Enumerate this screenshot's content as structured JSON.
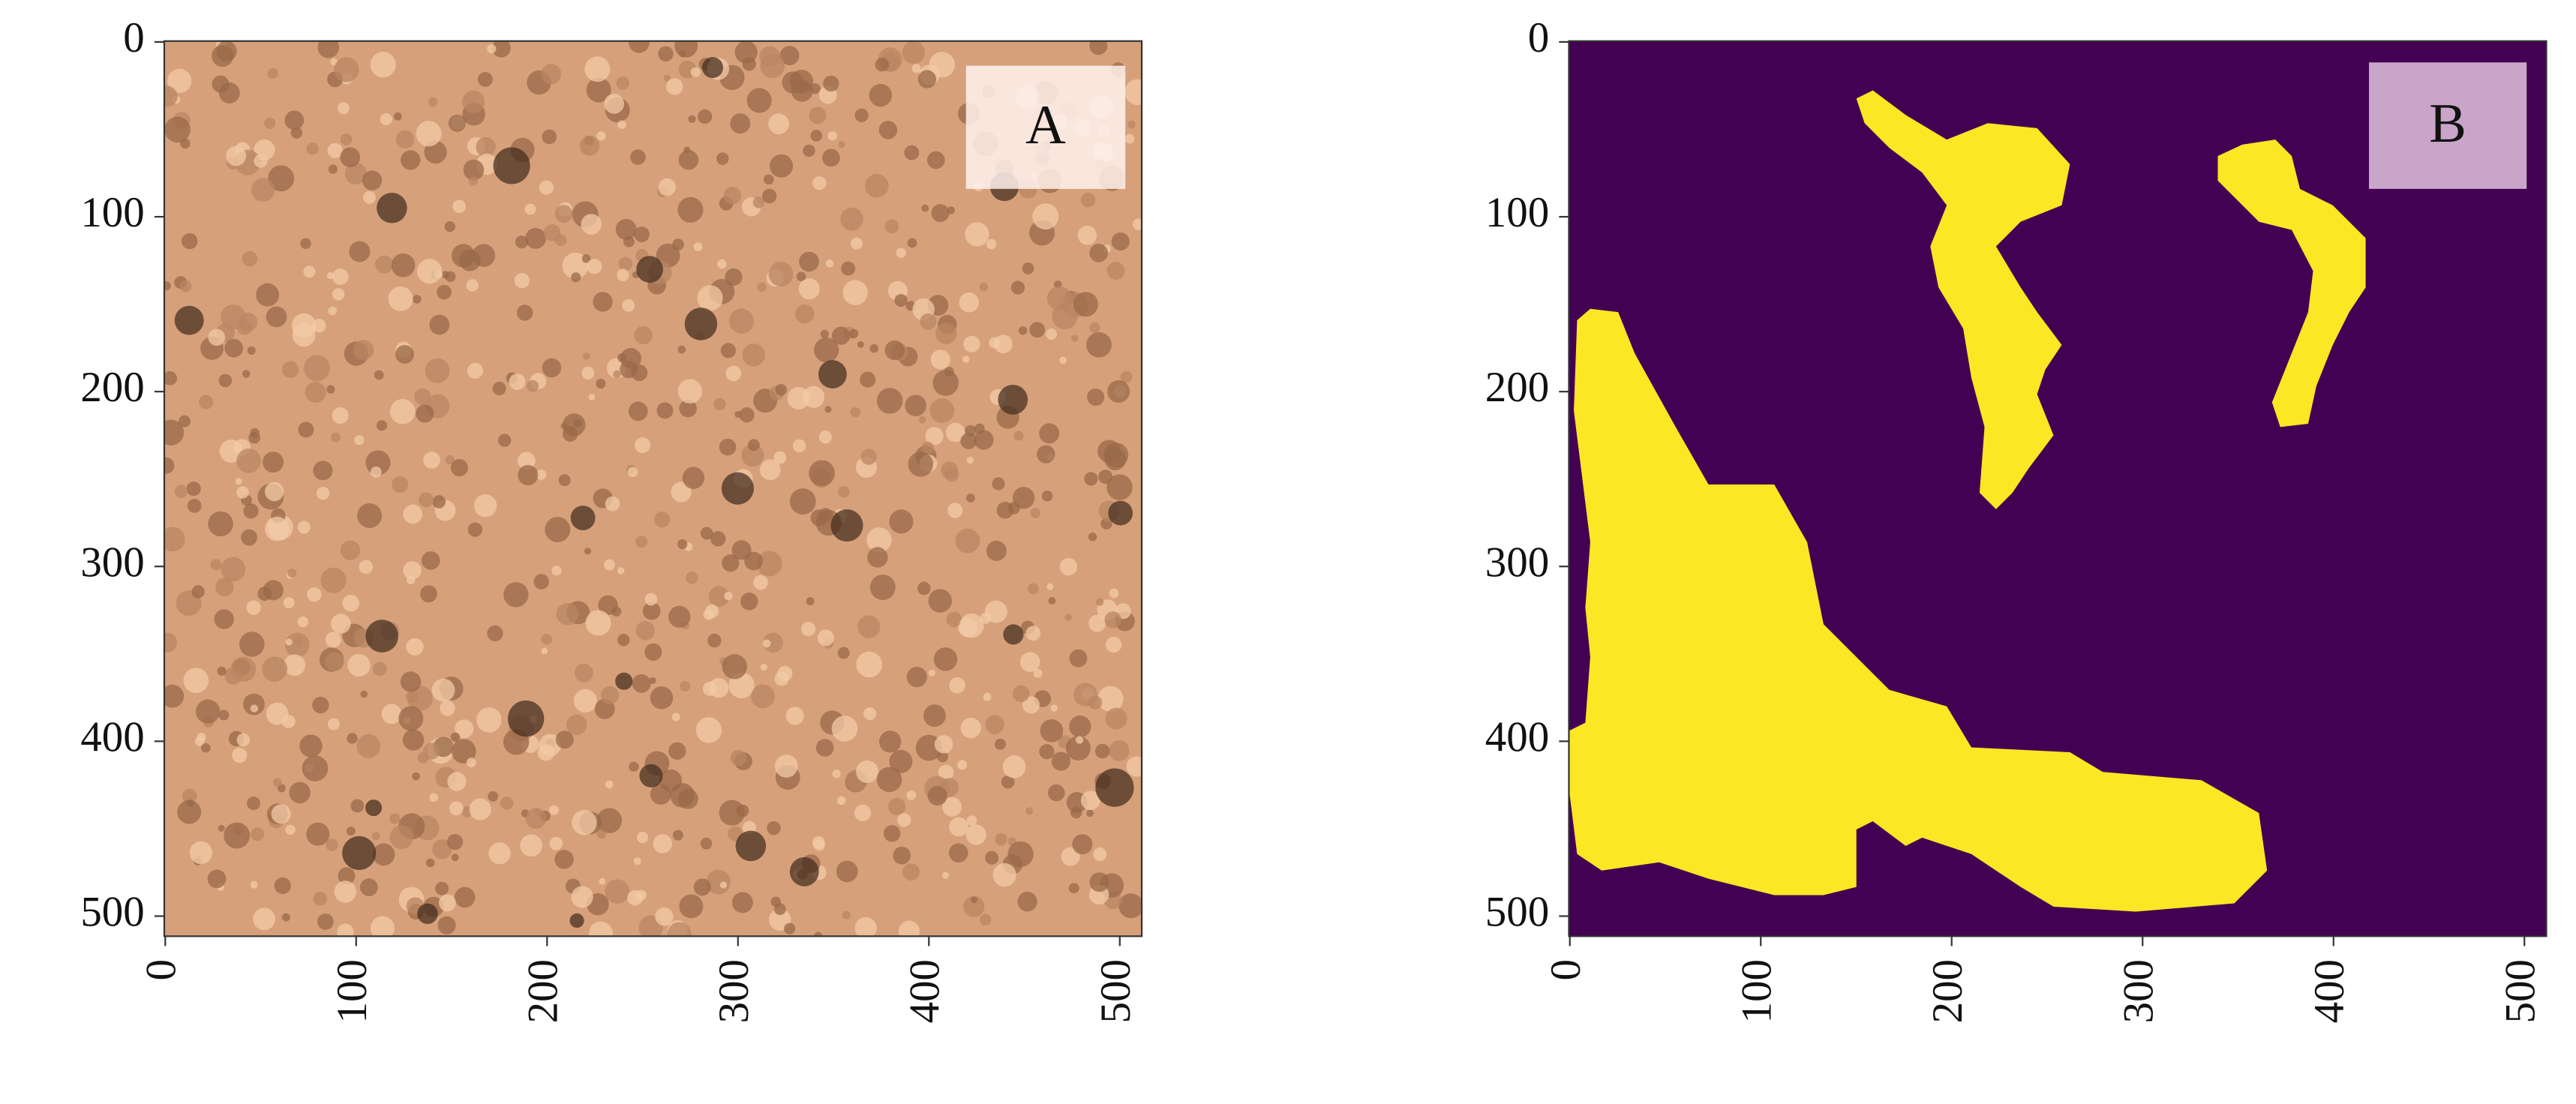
{
  "chart_data": [
    {
      "type": "image",
      "annotation": "A",
      "xlim": [
        -0.5,
        511.5
      ],
      "ylim": [
        511.5,
        -0.5
      ],
      "xticks": [
        0,
        100,
        200,
        300,
        400,
        500
      ],
      "yticks": [
        0,
        100,
        200,
        300,
        400,
        500
      ]
    },
    {
      "type": "image",
      "annotation": "B",
      "xlim": [
        -0.5,
        511.5
      ],
      "ylim": [
        511.5,
        -0.5
      ],
      "xticks": [
        0,
        100,
        200,
        300,
        400,
        500
      ],
      "yticks": [
        0,
        100,
        200,
        300,
        400,
        500
      ]
    }
  ]
}
